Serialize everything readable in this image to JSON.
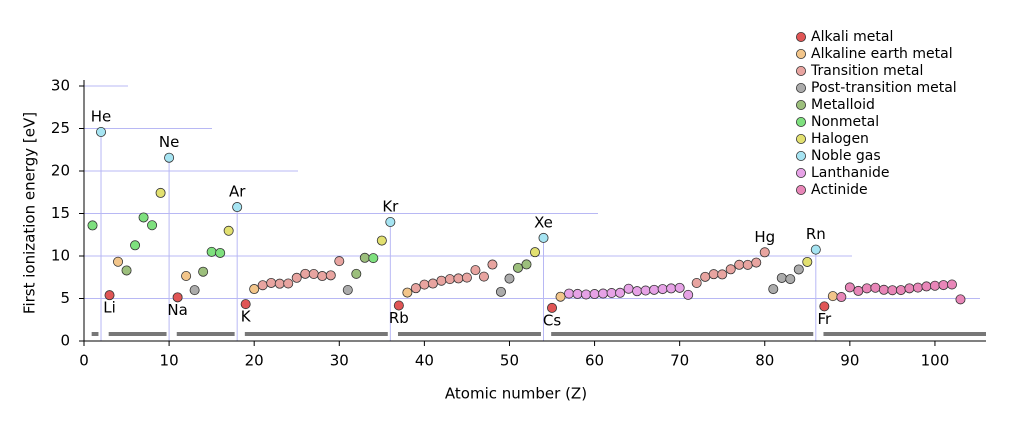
{
  "chart_data": {
    "type": "scatter",
    "x_label": "Atomic number (Z)",
    "y_label": "First ionization energy [eV]",
    "xlim": [
      0,
      106
    ],
    "ylim": [
      0,
      30
    ],
    "xticks": [
      0,
      10,
      20,
      30,
      40,
      50,
      60,
      70,
      80,
      90,
      100
    ],
    "yticks": [
      0,
      5,
      10,
      15,
      20,
      25,
      30
    ],
    "grid": true,
    "legend": "top-right",
    "series": [
      {
        "name": "Alkali metal",
        "color": "#e05555",
        "x": [
          3,
          11,
          19,
          37,
          55,
          87
        ],
        "values": [
          5.392,
          5.139,
          4.341,
          4.177,
          3.894,
          4.073
        ]
      },
      {
        "name": "Alkaline earth metal",
        "color": "#f2c58a",
        "x": [
          4,
          12,
          20,
          38,
          56,
          88
        ],
        "values": [
          9.323,
          7.646,
          6.113,
          5.695,
          5.212,
          5.278
        ]
      },
      {
        "name": "Transition metal",
        "color": "#e8a4a0",
        "x": [
          21,
          22,
          23,
          24,
          25,
          26,
          27,
          28,
          29,
          30,
          39,
          40,
          41,
          42,
          43,
          44,
          45,
          46,
          47,
          48,
          72,
          73,
          74,
          75,
          76,
          77,
          78,
          79,
          80
        ],
        "values": [
          6.561,
          6.828,
          6.746,
          6.767,
          7.434,
          7.902,
          7.881,
          7.64,
          7.726,
          9.394,
          6.217,
          6.634,
          6.759,
          7.092,
          7.28,
          7.361,
          7.459,
          8.337,
          7.576,
          8.994,
          6.825,
          7.55,
          7.864,
          7.834,
          8.438,
          8.967,
          8.959,
          9.226,
          10.438
        ]
      },
      {
        "name": "Post-transition metal",
        "color": "#ababab",
        "x": [
          13,
          31,
          49,
          50,
          81,
          82,
          83,
          84
        ],
        "values": [
          5.986,
          5.999,
          5.786,
          7.344,
          6.108,
          7.417,
          7.286,
          8.417
        ]
      },
      {
        "name": "Metalloid",
        "color": "#9cbf7c",
        "x": [
          5,
          14,
          32,
          33,
          51,
          52
        ],
        "values": [
          8.298,
          8.152,
          7.899,
          9.789,
          8.608,
          9.01
        ]
      },
      {
        "name": "Nonmetal",
        "color": "#7ee07e",
        "x": [
          1,
          6,
          7,
          8,
          15,
          16,
          34
        ],
        "values": [
          13.598,
          11.26,
          14.534,
          13.618,
          10.487,
          10.36,
          9.752
        ]
      },
      {
        "name": "Halogen",
        "color": "#e2e070",
        "x": [
          9,
          17,
          35,
          53,
          85
        ],
        "values": [
          17.423,
          12.968,
          11.814,
          10.451,
          9.3
        ]
      },
      {
        "name": "Noble gas",
        "color": "#a6e4f2",
        "x": [
          2,
          10,
          18,
          36,
          54,
          86
        ],
        "values": [
          24.587,
          21.565,
          15.76,
          14.0,
          12.13,
          10.749
        ]
      },
      {
        "name": "Lanthanide",
        "color": "#e6a2e6",
        "x": [
          57,
          58,
          59,
          60,
          61,
          62,
          63,
          64,
          65,
          66,
          67,
          68,
          69,
          70,
          71
        ],
        "values": [
          5.577,
          5.539,
          5.473,
          5.525,
          5.582,
          5.644,
          5.67,
          6.15,
          5.864,
          5.939,
          6.022,
          6.108,
          6.184,
          6.254,
          5.426
        ]
      },
      {
        "name": "Actinide",
        "color": "#e886b8",
        "x": [
          89,
          90,
          91,
          92,
          93,
          94,
          95,
          96,
          97,
          98,
          99,
          100,
          101,
          102,
          103
        ],
        "values": [
          5.17,
          6.307,
          5.89,
          6.194,
          6.266,
          6.026,
          5.974,
          5.991,
          6.198,
          6.282,
          6.42,
          6.5,
          6.58,
          6.65,
          4.9
        ]
      }
    ],
    "annotations": [
      {
        "text": "He",
        "x": 2,
        "position": "above"
      },
      {
        "text": "Ne",
        "x": 10,
        "position": "above"
      },
      {
        "text": "Ar",
        "x": 18,
        "position": "above"
      },
      {
        "text": "Kr",
        "x": 36,
        "position": "above"
      },
      {
        "text": "Xe",
        "x": 54,
        "position": "above"
      },
      {
        "text": "Hg",
        "x": 80,
        "position": "above"
      },
      {
        "text": "Rn",
        "x": 86,
        "position": "above"
      },
      {
        "text": "Li",
        "x": 3,
        "position": "below"
      },
      {
        "text": "Na",
        "x": 11,
        "position": "below"
      },
      {
        "text": "K",
        "x": 19,
        "position": "below"
      },
      {
        "text": "Rb",
        "x": 37,
        "position": "below"
      },
      {
        "text": "Cs",
        "x": 55,
        "position": "below"
      },
      {
        "text": "Fr",
        "x": 87,
        "position": "below"
      }
    ]
  }
}
